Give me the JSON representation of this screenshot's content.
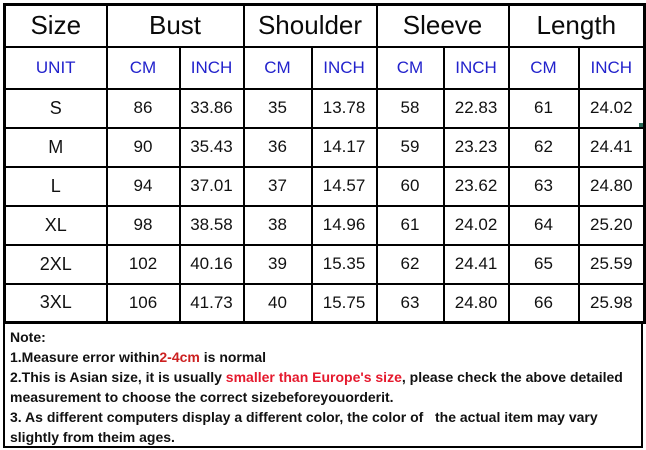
{
  "table": {
    "header": [
      "Size",
      "Bust",
      "Shoulder",
      "Sleeve",
      "Length"
    ],
    "unit_row": [
      "UNIT",
      "CM",
      "INCH",
      "CM",
      "INCH",
      "CM",
      "INCH",
      "CM",
      "INCH"
    ],
    "rows": [
      {
        "size": "S",
        "values": [
          "86",
          "33.86",
          "35",
          "13.78",
          "58",
          "22.83",
          "61",
          "24.02"
        ]
      },
      {
        "size": "M",
        "values": [
          "90",
          "35.43",
          "36",
          "14.17",
          "59",
          "23.23",
          "62",
          "24.41"
        ]
      },
      {
        "size": "L",
        "values": [
          "94",
          "37.01",
          "37",
          "14.57",
          "60",
          "23.62",
          "63",
          "24.80"
        ]
      },
      {
        "size": "XL",
        "values": [
          "98",
          "38.58",
          "38",
          "14.96",
          "61",
          "24.02",
          "64",
          "25.20"
        ]
      },
      {
        "size": "2XL",
        "values": [
          "102",
          "40.16",
          "39",
          "15.35",
          "62",
          "24.41",
          "65",
          "25.59"
        ]
      },
      {
        "size": "3XL",
        "values": [
          "106",
          "41.73",
          "40",
          "15.75",
          "63",
          "24.80",
          "66",
          "25.98"
        ]
      }
    ],
    "selected_cell": {
      "row_index": 0,
      "value_index": 7
    }
  },
  "notes": {
    "title": "Note:",
    "line1": {
      "prefix": "1.Measure error within",
      "highlight": "2-4cm",
      "suffix": " is normal"
    },
    "line2": {
      "prefix": "2.This is Asian size, it is usually ",
      "highlight": "smaller than Europe's size",
      "suffix": ", please check the above detailed measurement to choose the correct sizebeforeyouorderit."
    },
    "line3": "3. As different computers display a different color, the color of   the actual item may vary slightly from theim ages."
  },
  "colors": {
    "unit_text": "#2222cc",
    "note_highlight1": "#cc2020",
    "note_highlight2": "#e5192d",
    "selection_border": "#2a6a57",
    "table_border": "#000000"
  },
  "chart_data": {
    "type": "table",
    "title": "Garment size chart",
    "columns": [
      "Size",
      "Bust CM",
      "Bust INCH",
      "Shoulder CM",
      "Shoulder INCH",
      "Sleeve CM",
      "Sleeve INCH",
      "Length CM",
      "Length INCH"
    ],
    "rows": [
      [
        "S",
        86,
        33.86,
        35,
        13.78,
        58,
        22.83,
        61,
        24.02
      ],
      [
        "M",
        90,
        35.43,
        36,
        14.17,
        59,
        23.23,
        62,
        24.41
      ],
      [
        "L",
        94,
        37.01,
        37,
        14.57,
        60,
        23.62,
        63,
        24.8
      ],
      [
        "XL",
        98,
        38.58,
        38,
        14.96,
        61,
        24.02,
        64,
        25.2
      ],
      [
        "2XL",
        102,
        40.16,
        39,
        15.35,
        62,
        24.41,
        65,
        25.59
      ],
      [
        "3XL",
        106,
        41.73,
        40,
        15.75,
        63,
        24.8,
        66,
        25.98
      ]
    ]
  }
}
